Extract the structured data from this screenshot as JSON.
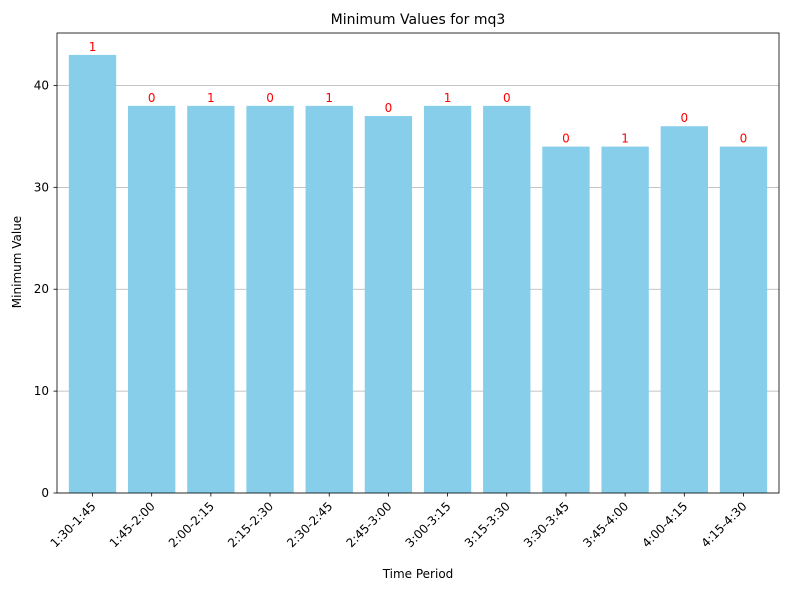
{
  "chart_data": {
    "type": "bar",
    "title": "Minimum Values for mq3",
    "xlabel": "Time Period",
    "ylabel": "Minimum Value",
    "categories": [
      "1:30-1:45",
      "1:45-2:00",
      "2:00-2:15",
      "2:15-2:30",
      "2:30-2:45",
      "2:45-3:00",
      "3:00-3:15",
      "3:15-3:30",
      "3:30-3:45",
      "3:45-4:00",
      "4:00-4:15",
      "4:15-4:30"
    ],
    "values": [
      43,
      38,
      38,
      38,
      38,
      37,
      38,
      38,
      34,
      34,
      36,
      34
    ],
    "annotations": [
      "1",
      "0",
      "1",
      "0",
      "1",
      "0",
      "1",
      "0",
      "0",
      "1",
      "0",
      "0"
    ],
    "ylim": [
      0,
      45.15
    ],
    "yticks": [
      0,
      10,
      20,
      30,
      40
    ],
    "grid": "y",
    "colors": {
      "bar": "#87ceeb",
      "annotation": "#ff0000",
      "grid": "#b0b0b0",
      "axis": "#000000"
    }
  }
}
